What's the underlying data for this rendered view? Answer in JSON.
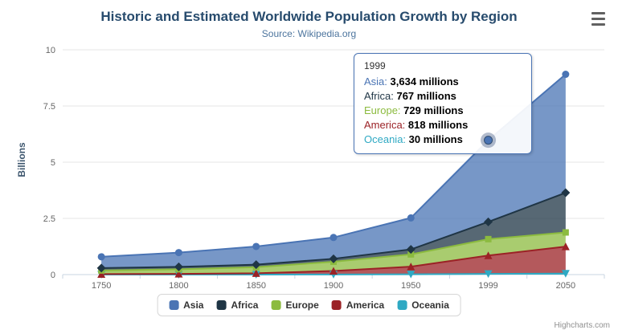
{
  "credits": "Highcharts.com",
  "icons": {
    "context_menu": "hamburger-icon"
  },
  "tooltip": {
    "header": "1999",
    "rows": [
      {
        "series": "Asia",
        "value": "3,634 millions"
      },
      {
        "series": "Africa",
        "value": "767 millions"
      },
      {
        "series": "Europe",
        "value": "729 millions"
      },
      {
        "series": "America",
        "value": "818 millions"
      },
      {
        "series": "Oceania",
        "value": "30 millions"
      }
    ]
  },
  "chart_data": {
    "type": "area",
    "stacked": true,
    "title": "Historic and Estimated Worldwide Population Growth by Region",
    "subtitle": "Source: Wikipedia.org",
    "categories": [
      "1750",
      "1800",
      "1850",
      "1900",
      "1950",
      "1999",
      "2050"
    ],
    "xlabel": "",
    "ylabel": "Billions",
    "unit": "millions",
    "ylim": [
      0,
      10
    ],
    "yticks": [
      0,
      2.5,
      5,
      7.5,
      10
    ],
    "grid": true,
    "legend_position": "bottom",
    "series": [
      {
        "name": "Asia",
        "color": "#4a74b4",
        "marker": "circle",
        "values": [
          502,
          635,
          809,
          947,
          1402,
          3634,
          5268
        ]
      },
      {
        "name": "Africa",
        "color": "#1f3545",
        "marker": "diamond",
        "values": [
          106,
          107,
          111,
          133,
          221,
          767,
          1766
        ]
      },
      {
        "name": "Europe",
        "color": "#8cbb3f",
        "marker": "square",
        "values": [
          163,
          203,
          276,
          408,
          547,
          729,
          628
        ]
      },
      {
        "name": "America",
        "color": "#9b2226",
        "marker": "triangle",
        "values": [
          18,
          31,
          54,
          156,
          339,
          818,
          1201
        ]
      },
      {
        "name": "Oceania",
        "color": "#2fa9c3",
        "marker": "triangle-down",
        "values": [
          2,
          2,
          2,
          6,
          13,
          30,
          46
        ]
      }
    ]
  }
}
